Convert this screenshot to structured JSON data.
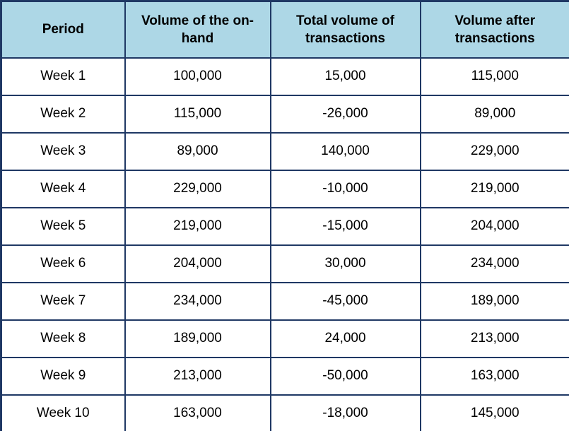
{
  "colors": {
    "header_bg": "#add7e6",
    "border": "#1f3864",
    "cell_bg": "#ffffff",
    "text": "#000000"
  },
  "chart_data": {
    "type": "table",
    "title": "",
    "columns": [
      "Period",
      "Volume of the on-hand",
      "Total volume of transactions",
      "Volume after transactions"
    ],
    "rows": [
      [
        "Week 1",
        "100,000",
        "15,000",
        "115,000"
      ],
      [
        "Week 2",
        "115,000",
        "-26,000",
        "89,000"
      ],
      [
        "Week 3",
        "89,000",
        "140,000",
        "229,000"
      ],
      [
        "Week 4",
        "229,000",
        "-10,000",
        "219,000"
      ],
      [
        "Week 5",
        "219,000",
        "-15,000",
        "204,000"
      ],
      [
        "Week 6",
        "204,000",
        "30,000",
        "234,000"
      ],
      [
        "Week 7",
        "234,000",
        "-45,000",
        "189,000"
      ],
      [
        "Week 8",
        "189,000",
        "24,000",
        "213,000"
      ],
      [
        "Week 9",
        "213,000",
        "-50,000",
        "163,000"
      ],
      [
        "Week 10",
        "163,000",
        "-18,000",
        "145,000"
      ]
    ]
  }
}
